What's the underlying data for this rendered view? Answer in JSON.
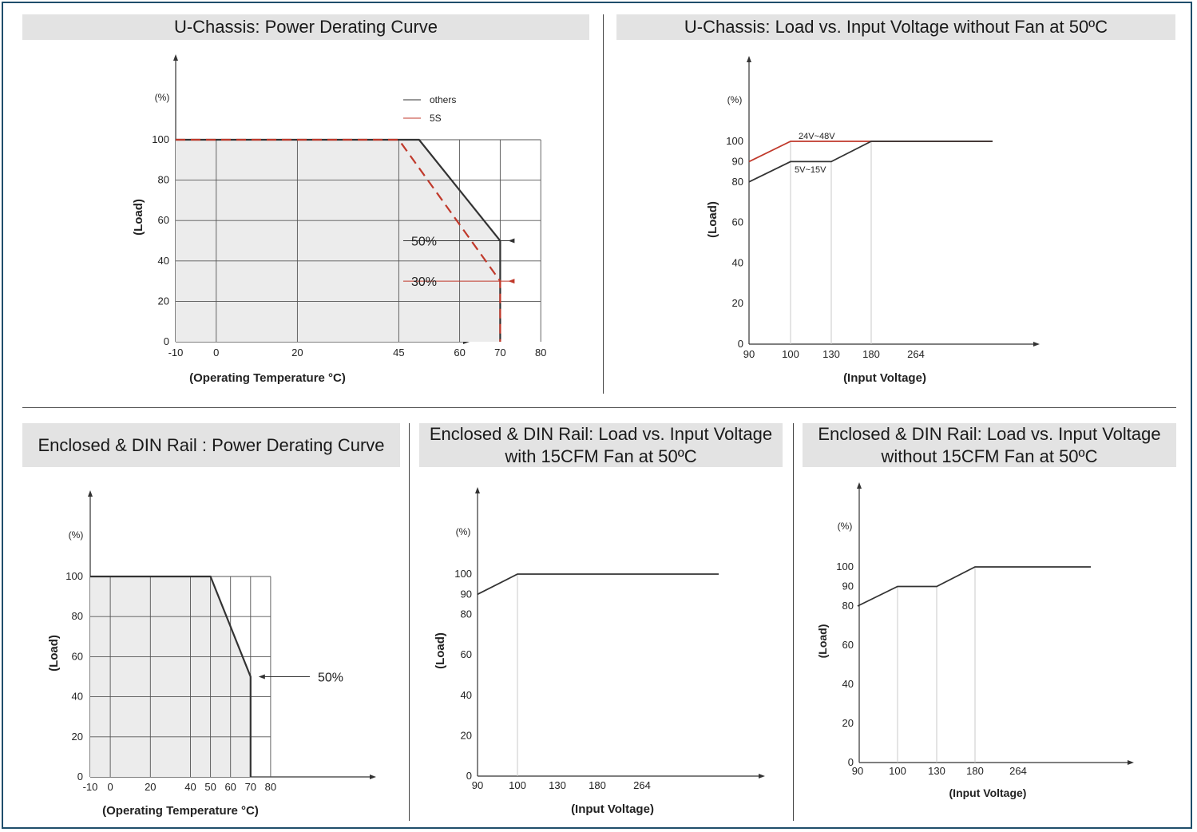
{
  "colors": {
    "accent": "#c0392b",
    "curve": "#333333",
    "grid": "#555555",
    "fill": "#ececec",
    "title_bg": "#e3e3e3",
    "frame": "#1f4e6b"
  },
  "chart_data": [
    {
      "id": "uchassis-derating",
      "type": "line",
      "title": "U-Chassis: Power Derating Curve",
      "xlabel": "(Operating Temperature °C)",
      "ylabel": "(Load)",
      "y_unit": "(%)",
      "x_ticks": [
        "-10",
        "0",
        "20",
        "45",
        "60",
        "70",
        "80"
      ],
      "y_ticks": [
        "0",
        "20",
        "40",
        "60",
        "80",
        "100"
      ],
      "xlim": [
        -10,
        80
      ],
      "ylim": [
        0,
        100
      ],
      "grid_x": [
        0,
        20,
        45,
        60,
        70,
        80
      ],
      "grid_y": [
        20,
        40,
        60,
        80,
        100
      ],
      "shaded": true,
      "series": [
        {
          "name": "others",
          "color": "#333333",
          "style": "solid",
          "x": [
            -10,
            50,
            70,
            70
          ],
          "y": [
            100,
            100,
            50,
            0
          ]
        },
        {
          "name": "5S",
          "color": "#c0392b",
          "style": "dashed",
          "x": [
            -10,
            45,
            70,
            70
          ],
          "y": [
            100,
            100,
            30,
            0
          ]
        }
      ],
      "legend": "top-right",
      "annotations": [
        {
          "text": "50%",
          "x": 70,
          "y": 50,
          "color": "#333333"
        },
        {
          "text": "30%",
          "x": 70,
          "y": 30,
          "color": "#c0392b"
        }
      ]
    },
    {
      "id": "uchassis-input-voltage",
      "type": "line",
      "title": "U-Chassis: Load vs. Input Voltage without Fan at 50ºC",
      "xlabel": "(Input Voltage)",
      "ylabel": "(Load)",
      "y_unit": "(%)",
      "x_ticks": [
        "90",
        "100",
        "130",
        "180",
        "264"
      ],
      "y_ticks": [
        "0",
        "20",
        "40",
        "60",
        "80",
        "90",
        "100"
      ],
      "ylim": [
        0,
        100
      ],
      "series": [
        {
          "name": "24V~48V",
          "color": "#c0392b",
          "style": "solid",
          "x": [
            90,
            100,
            180,
            264
          ],
          "y": [
            90,
            100,
            100,
            100
          ]
        },
        {
          "name": "5V~15V",
          "color": "#333333",
          "style": "solid",
          "x": [
            90,
            100,
            130,
            180,
            264
          ],
          "y": [
            80,
            90,
            90,
            100,
            100
          ]
        }
      ]
    },
    {
      "id": "din-derating",
      "type": "line",
      "title": "Enclosed & DIN Rail : Power Derating Curve",
      "xlabel": "(Operating Temperature °C)",
      "ylabel": "(Load)",
      "y_unit": "(%)",
      "x_ticks": [
        "-10",
        "0",
        "20",
        "40",
        "50",
        "60",
        "70",
        "80"
      ],
      "y_ticks": [
        "0",
        "20",
        "40",
        "60",
        "80",
        "100"
      ],
      "xlim": [
        -10,
        80
      ],
      "ylim": [
        0,
        100
      ],
      "grid_x": [
        0,
        20,
        40,
        50,
        60,
        70,
        80
      ],
      "grid_y": [
        20,
        40,
        60,
        80,
        100
      ],
      "shaded": true,
      "series": [
        {
          "name": "",
          "color": "#333333",
          "style": "solid",
          "x": [
            -10,
            50,
            70,
            70
          ],
          "y": [
            100,
            100,
            50,
            0
          ]
        }
      ],
      "annotations": [
        {
          "text": "50%",
          "x": 70,
          "y": 50,
          "color": "#333333"
        }
      ]
    },
    {
      "id": "din-with-fan",
      "type": "line",
      "title": "Enclosed & DIN Rail: Load vs. Input Voltage with 15CFM Fan at 50ºC",
      "xlabel": "(Input Voltage)",
      "ylabel": "(Load)",
      "y_unit": "(%)",
      "x_ticks": [
        "90",
        "100",
        "130",
        "180",
        "264"
      ],
      "y_ticks": [
        "0",
        "20",
        "40",
        "60",
        "80",
        "90",
        "100"
      ],
      "ylim": [
        0,
        100
      ],
      "series": [
        {
          "name": "",
          "color": "#333333",
          "style": "solid",
          "x": [
            90,
            100,
            264
          ],
          "y": [
            90,
            100,
            100
          ]
        }
      ]
    },
    {
      "id": "din-without-fan",
      "type": "line",
      "title": "Enclosed & DIN Rail: Load vs. Input Voltage without 15CFM Fan at 50ºC",
      "xlabel": "(Input Voltage)",
      "ylabel": "(Load)",
      "y_unit": "(%)",
      "x_ticks": [
        "90",
        "100",
        "130",
        "180",
        "264"
      ],
      "y_ticks": [
        "0",
        "20",
        "40",
        "60",
        "80",
        "90",
        "100"
      ],
      "ylim": [
        0,
        100
      ],
      "series": [
        {
          "name": "",
          "color": "#333333",
          "style": "solid",
          "x": [
            90,
            100,
            130,
            180,
            264
          ],
          "y": [
            80,
            90,
            90,
            100,
            100
          ]
        }
      ]
    }
  ]
}
